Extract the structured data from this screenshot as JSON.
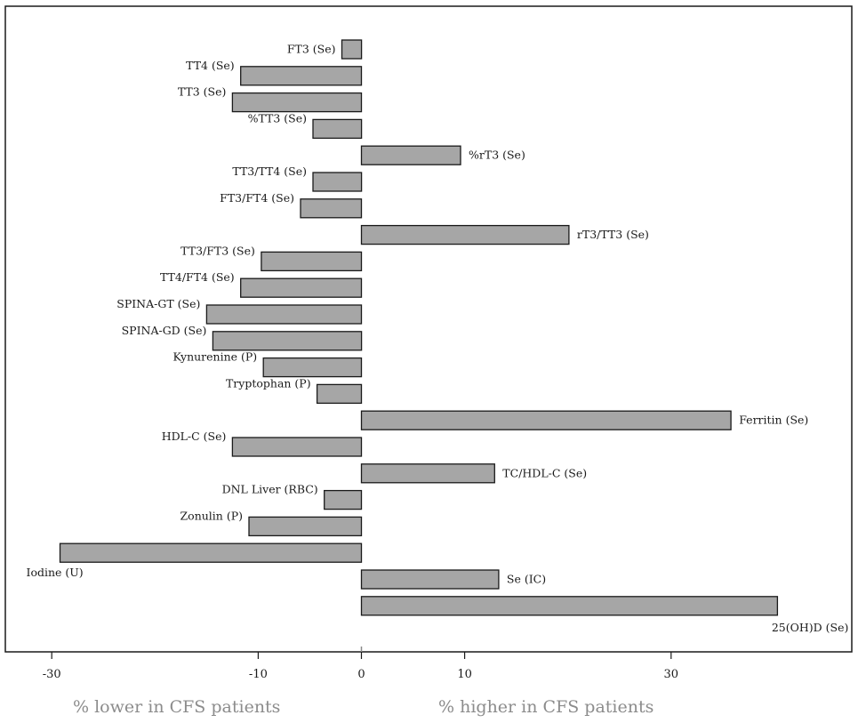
{
  "chart_data": {
    "type": "bar",
    "orientation": "horizontal",
    "title": "",
    "categories": [
      "FT3 (Se)",
      "TT4 (Se)",
      "TT3 (Se)",
      "%TT3 (Se)",
      "%rT3 (Se)",
      "TT3/TT4 (Se)",
      "FT3/FT4 (Se)",
      "rT3/TT3 (Se)",
      "TT3/FT3 (Se)",
      "TT4/FT4 (Se)",
      "SPINA-GT (Se)",
      "SPINA-GD (Se)",
      "Kynurenine (P)",
      "Tryptophan (P)",
      "Ferritin (Se)",
      "HDL-C (Se)",
      "TC/HDL-C (Se)",
      "DNL Liver (RBC)",
      "Zonulin (P)",
      "Iodine (U)",
      "Se (IC)",
      "25(OH)D (Se)"
    ],
    "values": [
      -1.9,
      -11.7,
      -12.5,
      -4.7,
      9.6,
      -4.7,
      -5.9,
      20.1,
      -9.7,
      -11.7,
      -15.0,
      -14.4,
      -9.5,
      -4.3,
      35.8,
      -12.5,
      12.9,
      -3.6,
      -10.9,
      -29.2,
      13.3,
      40.3
    ],
    "xlabel_left": "% lower in CFS patients",
    "xlabel_right": "% higher in CFS patients",
    "xlim": [
      -34.5,
      47.5
    ],
    "xticks": [
      -30,
      -10,
      0,
      10,
      30
    ],
    "xtick_labels": [
      "-30",
      "-10",
      "0",
      "10",
      "30"
    ],
    "grid": false,
    "bar_color": "#a6a6a6"
  }
}
